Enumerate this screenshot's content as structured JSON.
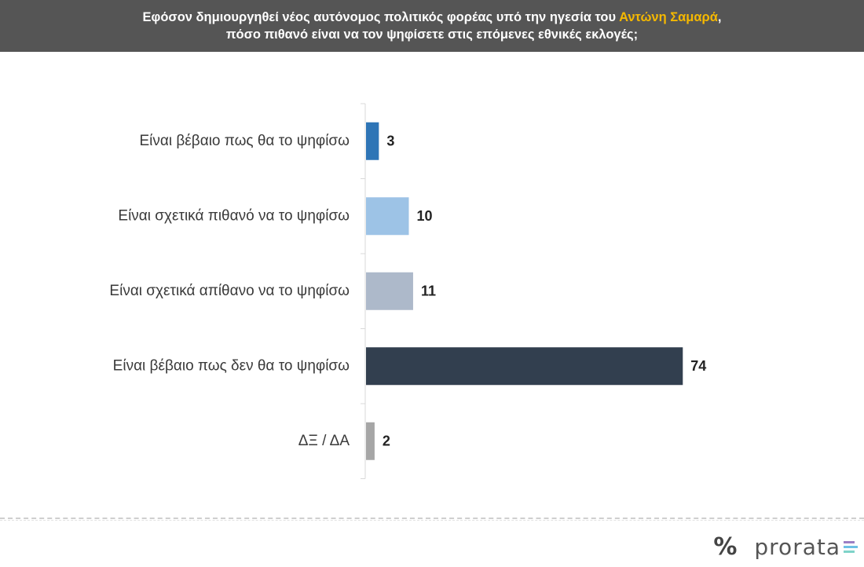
{
  "header": {
    "line1_prefix": "Εφόσον δημιουργηθεί νέος αυτόνομος πολιτικός φορέας υπό την ηγεσία του ",
    "line1_highlight": "Αντώνη Σαμαρά",
    "line1_suffix": ",",
    "line2": "πόσο πιθανό είναι να τον ψηφίσετε στις επόμενες εθνικές εκλογές;"
  },
  "chart_data": {
    "type": "bar",
    "orientation": "horizontal",
    "title": "",
    "xlabel": "",
    "ylabel": "",
    "categories": [
      "Είναι βέβαιο πως θα το ψηφίσω",
      "Είναι σχετικά πιθανό να το ψηφίσω",
      "Είναι σχετικά απίθανο να το ψηφίσω",
      "Είναι βέβαιο πως δεν θα το ψηφίσω",
      "ΔΞ / ΔΑ"
    ],
    "values": [
      3,
      10,
      11,
      74,
      2
    ],
    "colors": [
      "#2e75b6",
      "#9dc3e6",
      "#adb9ca",
      "#323f4f",
      "#a6a6a6"
    ],
    "xlim": [
      0,
      80
    ],
    "grid": false,
    "legend": "none"
  },
  "footer": {
    "logo_symbol": "%",
    "logo_text": "prorata",
    "logo_bar_colors": [
      "#9b7fc4",
      "#6cc0e5",
      "#7fd3c9"
    ]
  }
}
